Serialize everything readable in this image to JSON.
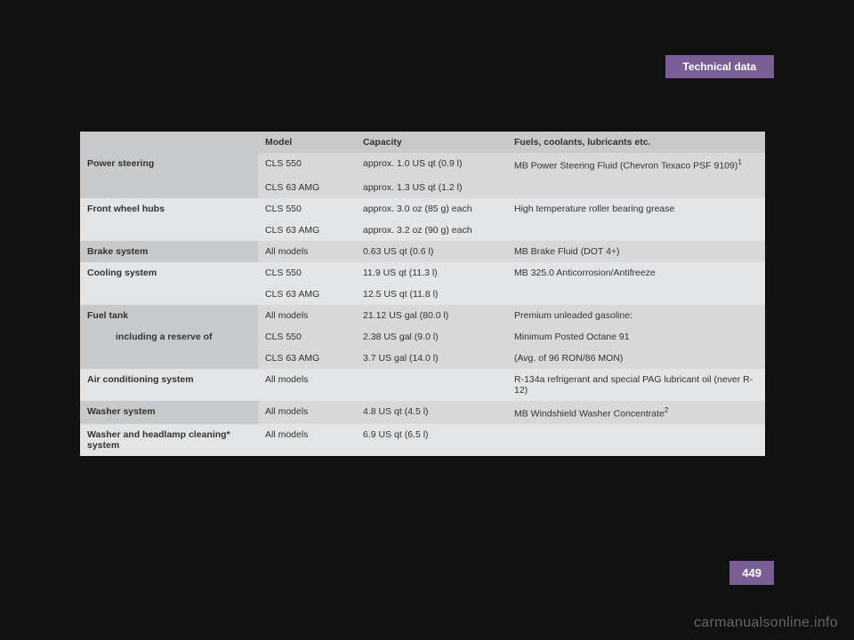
{
  "header": {
    "section": "Technical data"
  },
  "page_number": "449",
  "watermark": "carmanualsonline.info",
  "table": {
    "headers": [
      "",
      "Model",
      "Capacity",
      "Fuels, coolants, lubricants etc."
    ],
    "rows": [
      {
        "group": "Power steering",
        "model": "CLS 550",
        "capacity": "approx. 1.0 US qt (0.9 l)",
        "fuel": "MB Power Steering Fluid (Chevron Texaco PSF 9109)",
        "sup": "1",
        "shade": "dk",
        "first": true
      },
      {
        "group": "",
        "model": "CLS 63 AMG",
        "capacity": "approx. 1.3 US qt (1.2 l)",
        "fuel": "",
        "shade": "dk"
      },
      {
        "group": "Front wheel hubs",
        "model": "CLS 550",
        "capacity": "approx. 3.0 oz (85 g) each",
        "fuel": "High temperature roller bearing grease",
        "shade": "lt",
        "first": true
      },
      {
        "group": "",
        "model": "CLS 63 AMG",
        "capacity": "approx. 3.2 oz (90 g) each",
        "fuel": "",
        "shade": "lt"
      },
      {
        "group": "Brake system",
        "model": "All models",
        "capacity": "0.63 US qt (0.6 l)",
        "fuel": "MB Brake Fluid (DOT 4+)",
        "shade": "dk",
        "first": true
      },
      {
        "group": "Cooling system",
        "model": "CLS 550",
        "capacity": "11.9 US qt (11.3 l)",
        "fuel": "MB 325.0 Anticorrosion/Antifreeze",
        "shade": "lt",
        "first": true
      },
      {
        "group": "",
        "model": "CLS 63 AMG",
        "capacity": "12.5 US qt (11.8 l)",
        "fuel": "",
        "shade": "lt"
      },
      {
        "group": "Fuel tank",
        "model": "All models",
        "capacity": "21.12 US gal (80.0 l)",
        "fuel": "Premium unleaded gasoline:",
        "shade": "dk",
        "first": true
      },
      {
        "group": "including a reserve of",
        "model": "CLS 550",
        "capacity": "2.38 US gal (9.0 l)",
        "fuel": "Minimum Posted Octane 91",
        "shade": "dk",
        "indent": true
      },
      {
        "group": "",
        "model": "CLS 63 AMG",
        "capacity": "3.7 US gal (14.0 l)",
        "fuel": "(Avg. of 96 RON/86 MON)",
        "shade": "dk"
      },
      {
        "group": "Air conditioning system",
        "model": "All models",
        "capacity": "",
        "fuel": "R-134a refrigerant and special PAG lubricant oil (never R-12)",
        "shade": "lt",
        "first": true
      },
      {
        "group": "Washer system",
        "model": "All models",
        "capacity": "4.8 US qt (4.5 l)",
        "fuel": "MB Windshield Washer Concentrate",
        "sup": "2",
        "shade": "dk",
        "first": true
      },
      {
        "group": "Washer and headlamp cleaning* system",
        "model": "All models",
        "capacity": "6.9 US qt (6.5 l)",
        "fuel": "",
        "shade": "lt",
        "first": true
      }
    ]
  }
}
